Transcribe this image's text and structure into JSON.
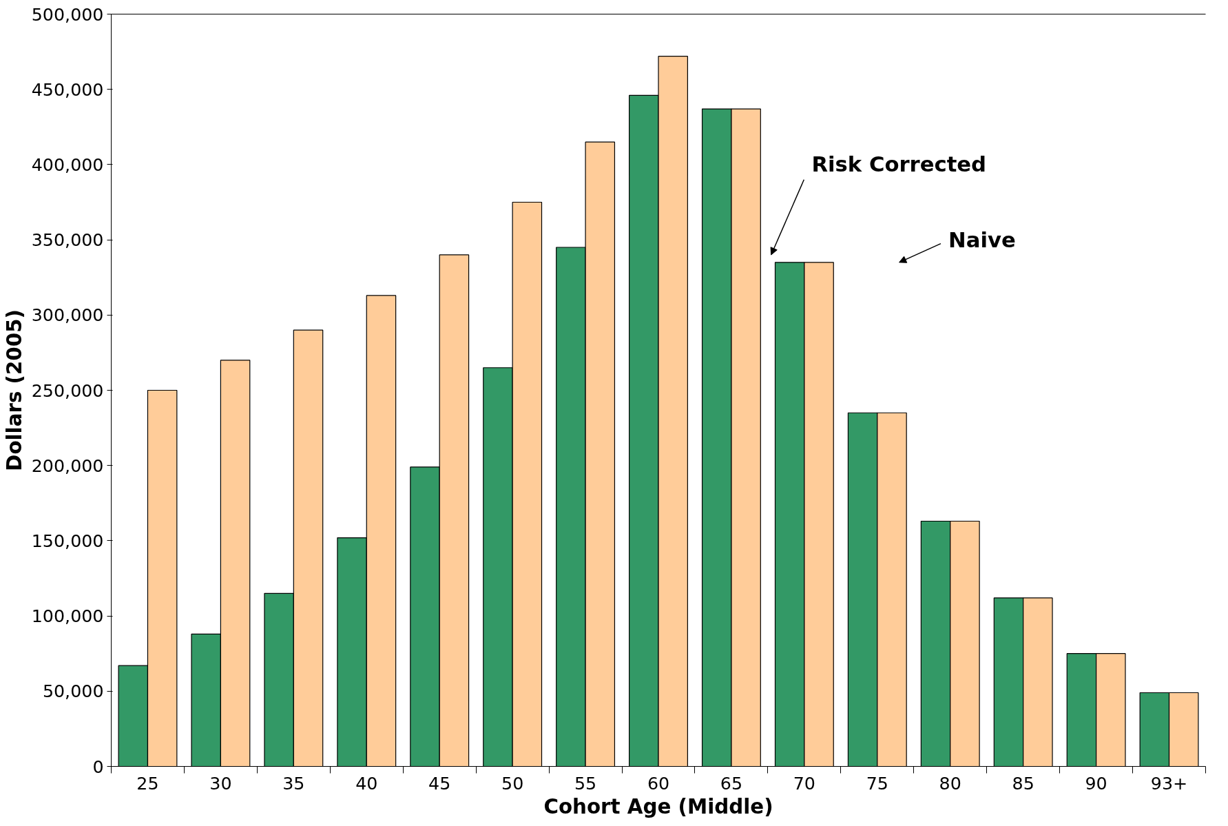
{
  "chart_data": {
    "type": "bar",
    "xlabel": "Cohort Age (Middle)",
    "ylabel": "Dollars (2005)",
    "categories": [
      "25",
      "30",
      "35",
      "40",
      "45",
      "50",
      "55",
      "60",
      "65",
      "70",
      "75",
      "80",
      "85",
      "90",
      "93+"
    ],
    "series": [
      {
        "color": "#339966",
        "values": [
          67000,
          88000,
          115000,
          152000,
          199000,
          265000,
          345000,
          446000,
          437000,
          335000,
          235000,
          163000,
          112000,
          75000,
          49000
        ]
      },
      {
        "color": "#ffcc99",
        "values": [
          250000,
          270000,
          290000,
          313000,
          340000,
          375000,
          415000,
          472000,
          437000,
          335000,
          235000,
          163000,
          112000,
          75000,
          49000
        ]
      }
    ],
    "ylim": [
      0,
      500000
    ],
    "yticks": [
      {
        "value": 0,
        "label": "0"
      },
      {
        "value": 50000,
        "label": "50,000"
      },
      {
        "value": 100000,
        "label": "100,000"
      },
      {
        "value": 150000,
        "label": "150,000"
      },
      {
        "value": 200000,
        "label": "200,000"
      },
      {
        "value": 250000,
        "label": "250,000"
      },
      {
        "value": 300000,
        "label": "300,000"
      },
      {
        "value": 350000,
        "label": "350,000"
      },
      {
        "value": 400000,
        "label": "400,000"
      },
      {
        "value": 450000,
        "label": "450,000"
      },
      {
        "value": 500000,
        "label": "500,000"
      }
    ],
    "annotations": [
      "Risk Corrected",
      "Naive"
    ],
    "grid": false
  }
}
